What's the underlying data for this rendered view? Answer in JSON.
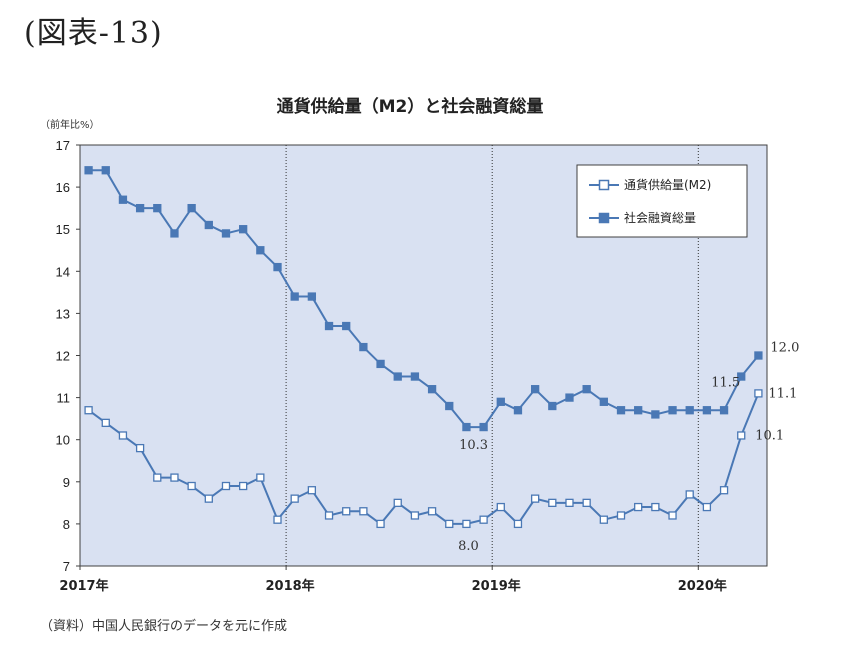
{
  "figure_label": "(図表-13)",
  "source_note": "（資料）中国人民銀行のデータを元に作成",
  "colors": {
    "plot_bg": "#d9e1f2",
    "series": "#4a78b5",
    "axis": "#404040"
  },
  "chart_data": {
    "type": "line",
    "title": "通貨供給量（M2）と社会融資総量",
    "ylabel": "（前年比%）",
    "ylim": [
      7,
      17
    ],
    "yticks": [
      "7",
      "8",
      "9",
      "10",
      "11",
      "12",
      "13",
      "14",
      "15",
      "16",
      "17"
    ],
    "x_start": "2017-01",
    "x_end": "2020-04",
    "xtick_labels": [
      {
        "label": "2017年",
        "month": "2017-01"
      },
      {
        "label": "2018年",
        "month": "2018-01"
      },
      {
        "label": "2019年",
        "month": "2019-01"
      },
      {
        "label": "2020年",
        "month": "2020-01"
      }
    ],
    "vlines": [
      "2017-12",
      "2018-12",
      "2019-12"
    ],
    "grid": false,
    "legend_position": "top-right",
    "series": [
      {
        "name": "通貨供給量(M2)",
        "marker": "open-square",
        "values": [
          10.7,
          10.4,
          10.1,
          9.8,
          9.1,
          9.1,
          8.9,
          8.6,
          8.9,
          8.9,
          9.1,
          8.1,
          8.6,
          8.8,
          8.2,
          8.3,
          8.3,
          8.0,
          8.5,
          8.2,
          8.3,
          8.0,
          8.0,
          8.1,
          8.4,
          8.0,
          8.6,
          8.5,
          8.5,
          8.5,
          8.1,
          8.2,
          8.4,
          8.4,
          8.2,
          8.7,
          8.4,
          8.8,
          10.1,
          11.1
        ]
      },
      {
        "name": "社会融資総量",
        "marker": "filled-square",
        "values": [
          16.4,
          16.4,
          15.7,
          15.5,
          15.5,
          14.9,
          15.5,
          15.1,
          14.9,
          15.0,
          14.5,
          14.1,
          13.4,
          13.4,
          12.7,
          12.7,
          12.2,
          11.8,
          11.5,
          11.5,
          11.2,
          10.8,
          10.3,
          10.3,
          10.9,
          10.7,
          11.2,
          10.8,
          11.0,
          11.2,
          10.9,
          10.7,
          10.7,
          10.6,
          10.7,
          10.7,
          10.7,
          10.7,
          11.5,
          12.0
        ]
      }
    ],
    "annotations": [
      {
        "text": "12.0",
        "series": 1,
        "index": 39
      },
      {
        "text": "11.5",
        "series": 1,
        "index": 38
      },
      {
        "text": "11.1",
        "series": 0,
        "index": 39
      },
      {
        "text": "10.1",
        "series": 0,
        "index": 38
      },
      {
        "text": "10.3",
        "series": 1,
        "index": 23
      },
      {
        "text": "8.0",
        "series": 0,
        "index": 22
      }
    ]
  }
}
